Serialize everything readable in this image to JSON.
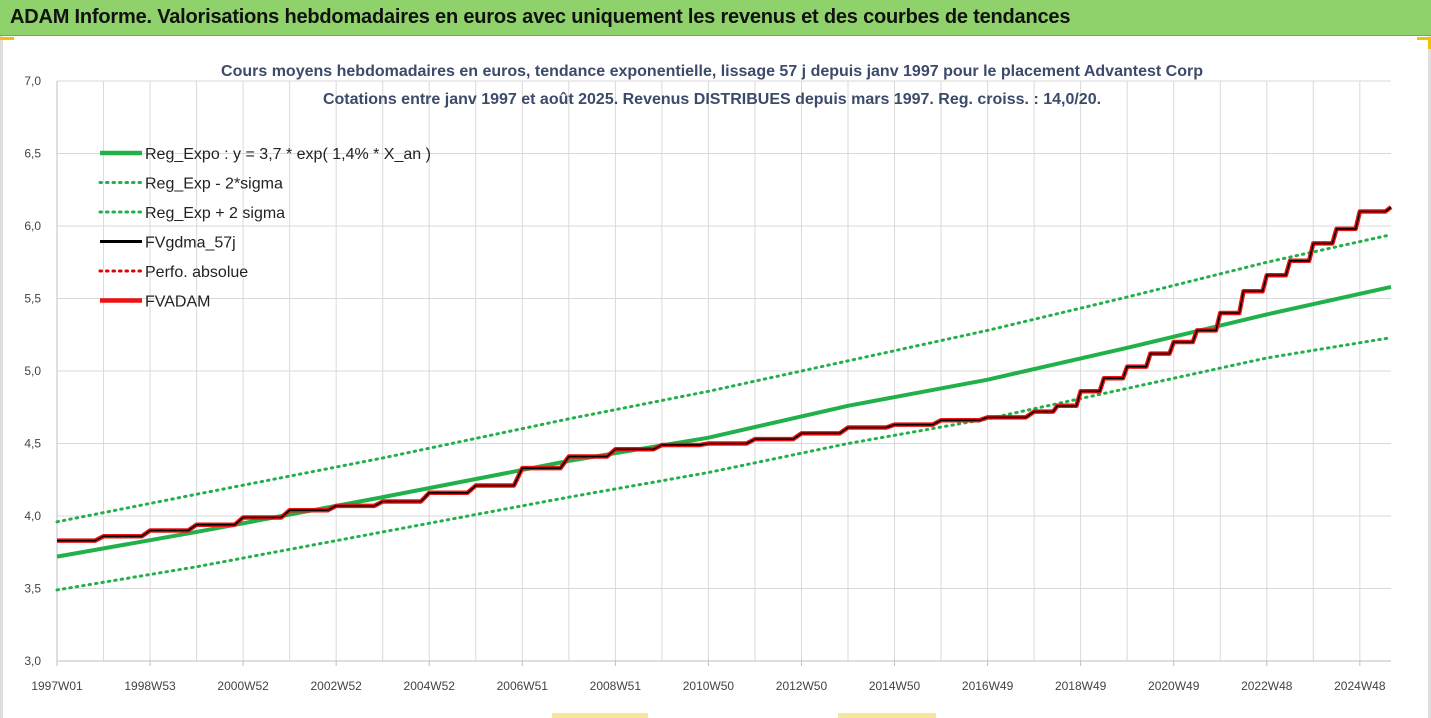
{
  "header": {
    "title": "ADAM Informe. Valorisations hebdomadaires en euros avec uniquement les revenus et des courbes de tendances"
  },
  "colors": {
    "header_bg": "#8fd16a",
    "reg_expo": "#22b04b",
    "fvgdma": "#000000",
    "perfo": "#e00000",
    "fvadam": "#ee1111",
    "grid": "#d9d9d9"
  },
  "chart_data": {
    "type": "line",
    "title_lines": [
      "Cours moyens hebdomadaires en euros, tendance exponentielle, lissage 57 j depuis janv 1997  pour le placement Advantest Corp",
      "Cotations entre janv 1997 et août 2025. Revenus DISTRIBUES depuis mars 1997. Reg. croiss. : 14,0/20."
    ],
    "xlabel": "",
    "ylabel": "",
    "ylim": [
      3.0,
      7.0
    ],
    "y_ticks": [
      "3,0",
      "3,5",
      "4,0",
      "4,5",
      "5,0",
      "5,5",
      "6,0",
      "6,5",
      "7,0"
    ],
    "x_range": [
      1997.0,
      2025.67
    ],
    "x_tick_labels": [
      "1997W01",
      "1998W53",
      "2000W52",
      "2002W52",
      "2004W52",
      "2006W51",
      "2008W51",
      "2010W50",
      "2012W50",
      "2014W50",
      "2016W49",
      "2018W49",
      "2020W49",
      "2022W48",
      "2024W48"
    ],
    "x_tick_years": [
      1997.0,
      1999.0,
      2001.0,
      2003.0,
      2005.0,
      2007.0,
      2009.0,
      2011.0,
      2013.0,
      2015.0,
      2017.0,
      2019.0,
      2021.0,
      2023.0,
      2025.0
    ],
    "grid": true,
    "legend_position": "top-left",
    "series": [
      {
        "name": "Reg_Expo : y = 3,7 * exp( 1,4% *  X_an )",
        "style": "solid-thick",
        "color": "#22b04b",
        "x": [
          1997.0,
          2000.0,
          2004.0,
          2008.0,
          2011.0,
          2014.0,
          2017.0,
          2020.0,
          2023.0,
          2025.67
        ],
        "y": [
          3.72,
          3.89,
          4.13,
          4.38,
          4.54,
          4.76,
          4.94,
          5.16,
          5.39,
          5.58
        ]
      },
      {
        "name": "Reg_Exp - 2*sigma",
        "style": "dotted",
        "color": "#22b04b",
        "x": [
          1997.0,
          2000.0,
          2004.0,
          2008.0,
          2011.0,
          2014.0,
          2017.0,
          2020.0,
          2023.0,
          2025.67
        ],
        "y": [
          3.49,
          3.65,
          3.89,
          4.13,
          4.3,
          4.5,
          4.67,
          4.88,
          5.09,
          5.23
        ]
      },
      {
        "name": "Reg_Exp + 2 sigma",
        "style": "dotted",
        "color": "#22b04b",
        "x": [
          1997.0,
          2000.0,
          2004.0,
          2008.0,
          2011.0,
          2014.0,
          2017.0,
          2020.0,
          2023.0,
          2025.67
        ],
        "y": [
          3.96,
          4.15,
          4.4,
          4.67,
          4.86,
          5.07,
          5.28,
          5.51,
          5.75,
          5.94
        ]
      },
      {
        "name": "FVgdma_57j",
        "style": "solid",
        "color": "#000000",
        "x": [
          1997.0,
          1998.0,
          1999.0,
          2000.0,
          2001.0,
          2002.0,
          2003.0,
          2004.0,
          2005.0,
          2006.0,
          2007.0,
          2008.0,
          2009.0,
          2010.0,
          2011.0,
          2012.0,
          2013.0,
          2014.0,
          2015.0,
          2016.0,
          2017.0,
          2018.0,
          2018.5,
          2019.0,
          2019.5,
          2020.0,
          2020.5,
          2021.0,
          2021.5,
          2022.0,
          2022.5,
          2023.0,
          2023.5,
          2024.0,
          2024.5,
          2025.0,
          2025.67
        ],
        "y": [
          3.83,
          3.86,
          3.9,
          3.94,
          3.99,
          4.04,
          4.07,
          4.1,
          4.16,
          4.21,
          4.33,
          4.41,
          4.46,
          4.49,
          4.5,
          4.53,
          4.57,
          4.61,
          4.63,
          4.66,
          4.68,
          4.72,
          4.76,
          4.86,
          4.95,
          5.03,
          5.12,
          5.2,
          5.28,
          5.4,
          5.55,
          5.66,
          5.76,
          5.88,
          5.98,
          6.1,
          6.13
        ]
      },
      {
        "name": "Perfo. absolue",
        "style": "dotted",
        "color": "#e00000",
        "x": [],
        "y": []
      },
      {
        "name": "FVADAM",
        "style": "solid-thick",
        "color": "#ee1111",
        "x": [
          1997.0,
          1998.0,
          1999.0,
          2000.0,
          2001.0,
          2002.0,
          2003.0,
          2004.0,
          2005.0,
          2006.0,
          2007.0,
          2008.0,
          2009.0,
          2010.0,
          2011.0,
          2012.0,
          2013.0,
          2014.0,
          2015.0,
          2016.0,
          2017.0,
          2018.0,
          2018.5,
          2019.0,
          2019.5,
          2020.0,
          2020.5,
          2021.0,
          2021.5,
          2022.0,
          2022.5,
          2023.0,
          2023.5,
          2024.0,
          2024.5,
          2025.0,
          2025.67
        ],
        "y": [
          3.83,
          3.86,
          3.9,
          3.94,
          3.99,
          4.04,
          4.07,
          4.1,
          4.16,
          4.21,
          4.33,
          4.41,
          4.46,
          4.49,
          4.5,
          4.53,
          4.57,
          4.61,
          4.63,
          4.66,
          4.68,
          4.72,
          4.76,
          4.86,
          4.95,
          5.03,
          5.12,
          5.2,
          5.28,
          5.4,
          5.55,
          5.66,
          5.76,
          5.88,
          5.98,
          6.1,
          6.13
        ]
      }
    ]
  }
}
